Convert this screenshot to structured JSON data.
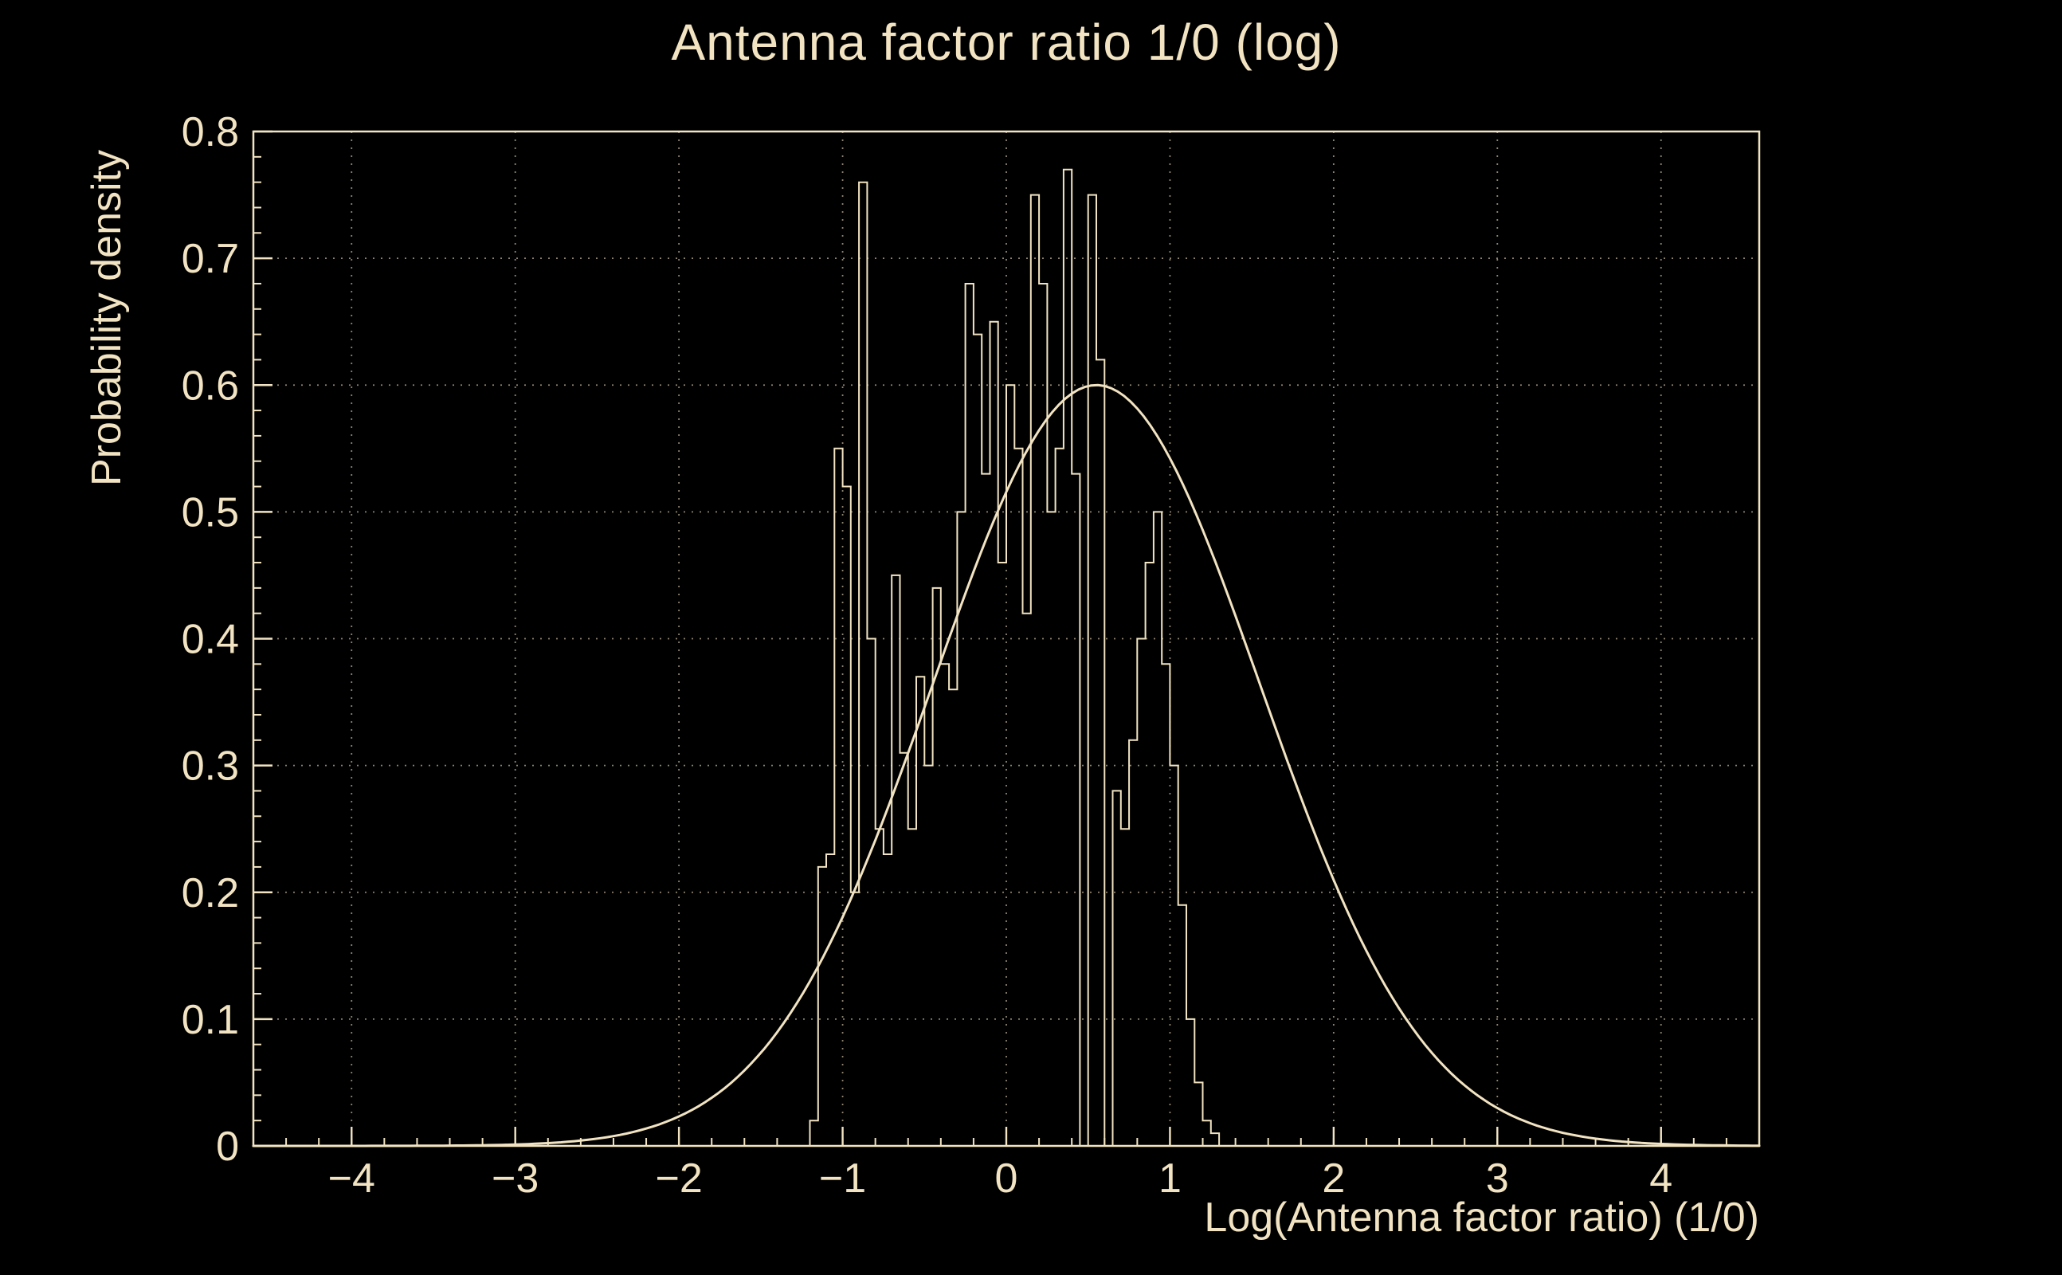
{
  "window": {
    "background": "#000000",
    "foreground": "#f2e4c2",
    "grid_color": "#8c8370"
  },
  "chart_data": {
    "type": "bar",
    "subtype": "step-histogram-with-gaussian-fit-curve",
    "title": "Antenna factor ratio 1/0 (log)",
    "xlabel": "Log(Antenna factor ratio) (1/0)",
    "ylabel": "Probability density",
    "xlim": [
      -4.6,
      4.6
    ],
    "ylim": [
      0,
      0.8
    ],
    "grid": {
      "on": true,
      "style": "dotted"
    },
    "legend": {
      "visible": false
    },
    "x_ticks": {
      "values": [
        -4,
        -3,
        -2,
        -1,
        0,
        1,
        2,
        3,
        4
      ],
      "labels": [
        "−4",
        "−3",
        "−2",
        "−1",
        "0",
        "1",
        "2",
        "3",
        "4"
      ],
      "minor_step": 0.2
    },
    "y_ticks": {
      "values": [
        0,
        0.1,
        0.2,
        0.3,
        0.4,
        0.5,
        0.6,
        0.7,
        0.8
      ],
      "labels": [
        "0",
        "0.1",
        "0.2",
        "0.3",
        "0.4",
        "0.5",
        "0.6",
        "0.7",
        "0.8"
      ],
      "minor_step": 0.02
    },
    "histogram": {
      "bin_start": -1.25,
      "bin_width": 0.05,
      "values": [
        0.0,
        0.02,
        0.22,
        0.23,
        0.55,
        0.52,
        0.2,
        0.76,
        0.4,
        0.25,
        0.23,
        0.45,
        0.31,
        0.25,
        0.37,
        0.3,
        0.44,
        0.38,
        0.36,
        0.5,
        0.68,
        0.64,
        0.53,
        0.65,
        0.46,
        0.6,
        0.55,
        0.42,
        0.75,
        0.68,
        0.5,
        0.55,
        0.77,
        0.53,
        0.0,
        0.75,
        0.62,
        0.0,
        0.28,
        0.25,
        0.32,
        0.4,
        0.46,
        0.5,
        0.38,
        0.3,
        0.19,
        0.1,
        0.05,
        0.02,
        0.01
      ]
    },
    "fit_curve": {
      "shape": "gaussian",
      "amplitude": 0.6,
      "mean": 0.55,
      "sigma": 1.0
    }
  }
}
